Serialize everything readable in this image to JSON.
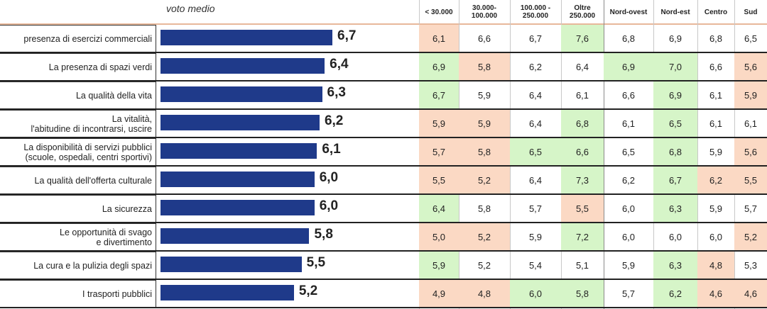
{
  "colors": {
    "bar": "#1f3a8a",
    "low": "#fbd9c4",
    "high": "#d6f5c8"
  },
  "header": {
    "title": "voto medio",
    "columns": [
      "< 30.000",
      "30.000-\n100.000",
      "100.000 -\n250.000",
      "Oltre\n250.000",
      "Nord-ovest",
      "Nord-est",
      "Centro",
      "Sud"
    ]
  },
  "chart_data": {
    "type": "bar",
    "orientation": "horizontal",
    "title": "voto medio",
    "categories": [
      "presenza di esercizi commerciali",
      "La presenza di spazi verdi",
      "La qualità della vita",
      "La vitalità,\nl'abitudine di incontrarsi, uscire",
      "La disponibilità di servizi pubblici\n(scuole, ospedali, centri sportivi)",
      "La qualità dell'offerta culturale",
      "La sicurezza",
      "Le opportunità di svago\ne divertimento",
      "La cura e la pulizia degli spazi",
      "I trasporti pubblici"
    ],
    "values": [
      6.7,
      6.4,
      6.3,
      6.2,
      6.1,
      6.0,
      6.0,
      5.8,
      5.5,
      5.2
    ],
    "value_labels": [
      "6,7",
      "6,4",
      "6,3",
      "6,2",
      "6,1",
      "6,0",
      "6,0",
      "5,8",
      "5,5",
      "5,2"
    ]
  },
  "table": {
    "rows": [
      [
        {
          "v": "6,1",
          "c": "low"
        },
        {
          "v": "6,6",
          "c": ""
        },
        {
          "v": "6,7",
          "c": ""
        },
        {
          "v": "7,6",
          "c": "high"
        },
        {
          "v": "6,8",
          "c": ""
        },
        {
          "v": "6,9",
          "c": ""
        },
        {
          "v": "6,8",
          "c": ""
        },
        {
          "v": "6,5",
          "c": ""
        }
      ],
      [
        {
          "v": "6,9",
          "c": "high"
        },
        {
          "v": "5,8",
          "c": "low"
        },
        {
          "v": "6,2",
          "c": ""
        },
        {
          "v": "6,4",
          "c": ""
        },
        {
          "v": "6,9",
          "c": "high"
        },
        {
          "v": "7,0",
          "c": "high"
        },
        {
          "v": "6,6",
          "c": ""
        },
        {
          "v": "5,6",
          "c": "low"
        }
      ],
      [
        {
          "v": "6,7",
          "c": "high"
        },
        {
          "v": "5,9",
          "c": ""
        },
        {
          "v": "6,4",
          "c": ""
        },
        {
          "v": "6,1",
          "c": ""
        },
        {
          "v": "6,6",
          "c": ""
        },
        {
          "v": "6,9",
          "c": "high"
        },
        {
          "v": "6,1",
          "c": ""
        },
        {
          "v": "5,9",
          "c": "low"
        }
      ],
      [
        {
          "v": "5,9",
          "c": "low"
        },
        {
          "v": "5,9",
          "c": "low"
        },
        {
          "v": "6,4",
          "c": ""
        },
        {
          "v": "6,8",
          "c": "high"
        },
        {
          "v": "6,1",
          "c": ""
        },
        {
          "v": "6,5",
          "c": "high"
        },
        {
          "v": "6,1",
          "c": ""
        },
        {
          "v": "6,1",
          "c": ""
        }
      ],
      [
        {
          "v": "5,7",
          "c": "low"
        },
        {
          "v": "5,8",
          "c": "low"
        },
        {
          "v": "6,5",
          "c": "high"
        },
        {
          "v": "6,6",
          "c": "high"
        },
        {
          "v": "6,5",
          "c": ""
        },
        {
          "v": "6,8",
          "c": "high"
        },
        {
          "v": "5,9",
          "c": ""
        },
        {
          "v": "5,6",
          "c": "low"
        }
      ],
      [
        {
          "v": "5,5",
          "c": "low"
        },
        {
          "v": "5,2",
          "c": "low"
        },
        {
          "v": "6,4",
          "c": ""
        },
        {
          "v": "7,3",
          "c": "high"
        },
        {
          "v": "6,2",
          "c": ""
        },
        {
          "v": "6,7",
          "c": "high"
        },
        {
          "v": "6,2",
          "c": "low"
        },
        {
          "v": "5,5",
          "c": "low"
        }
      ],
      [
        {
          "v": "6,4",
          "c": "high"
        },
        {
          "v": "5,8",
          "c": ""
        },
        {
          "v": "5,7",
          "c": ""
        },
        {
          "v": "5,5",
          "c": "low"
        },
        {
          "v": "6,0",
          "c": ""
        },
        {
          "v": "6,3",
          "c": "high"
        },
        {
          "v": "5,9",
          "c": ""
        },
        {
          "v": "5,7",
          "c": ""
        }
      ],
      [
        {
          "v": "5,0",
          "c": "low"
        },
        {
          "v": "5,2",
          "c": "low"
        },
        {
          "v": "5,9",
          "c": ""
        },
        {
          "v": "7,2",
          "c": "high"
        },
        {
          "v": "6,0",
          "c": ""
        },
        {
          "v": "6,0",
          "c": ""
        },
        {
          "v": "6,0",
          "c": ""
        },
        {
          "v": "5,2",
          "c": "low"
        }
      ],
      [
        {
          "v": "5,9",
          "c": "high"
        },
        {
          "v": "5,2",
          "c": ""
        },
        {
          "v": "5,4",
          "c": ""
        },
        {
          "v": "5,1",
          "c": ""
        },
        {
          "v": "5,9",
          "c": ""
        },
        {
          "v": "6,3",
          "c": "high"
        },
        {
          "v": "4,8",
          "c": "low"
        },
        {
          "v": "5,3",
          "c": ""
        }
      ],
      [
        {
          "v": "4,9",
          "c": "low"
        },
        {
          "v": "4,8",
          "c": "low"
        },
        {
          "v": "6,0",
          "c": "high"
        },
        {
          "v": "5,8",
          "c": "high"
        },
        {
          "v": "5,7",
          "c": ""
        },
        {
          "v": "6,2",
          "c": "high"
        },
        {
          "v": "4,6",
          "c": "low"
        },
        {
          "v": "4,6",
          "c": "low"
        }
      ]
    ]
  }
}
